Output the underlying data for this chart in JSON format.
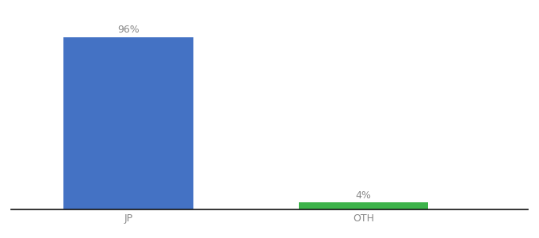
{
  "categories": [
    "JP",
    "OTH"
  ],
  "values": [
    96,
    4
  ],
  "bar_colors": [
    "#4472c4",
    "#3db34a"
  ],
  "value_labels": [
    "96%",
    "4%"
  ],
  "background_color": "#ffffff",
  "ylim": [
    0,
    106
  ],
  "bar_width": 0.55,
  "label_fontsize": 9,
  "tick_fontsize": 9,
  "x_positions": [
    0.5,
    1.5
  ]
}
